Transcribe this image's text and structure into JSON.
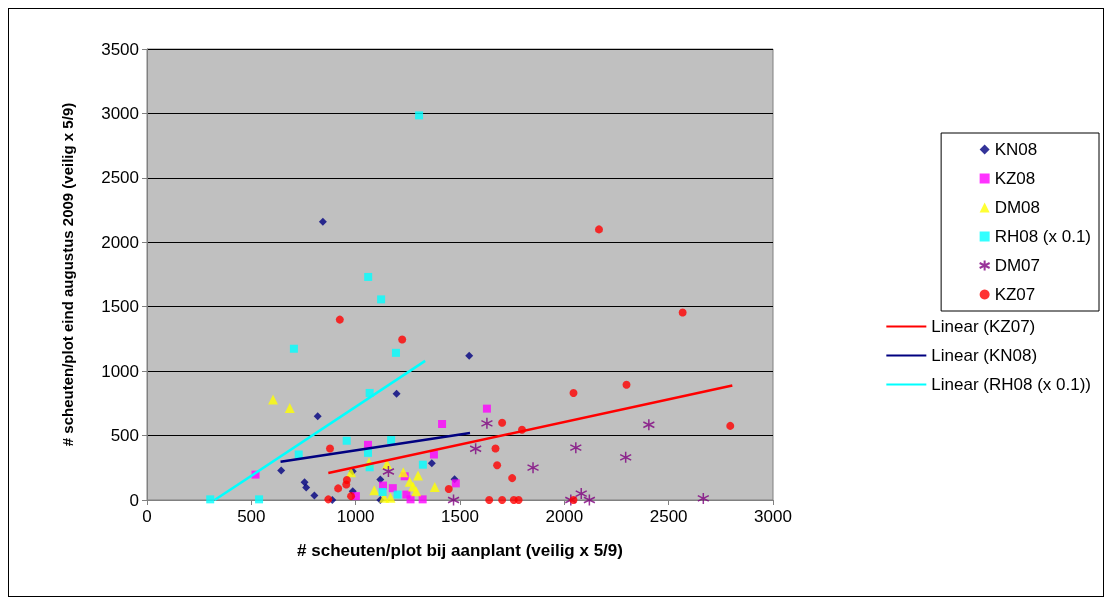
{
  "chart_data": {
    "type": "scatter",
    "xlabel": "# scheuten/plot bij aanplant (veilig x 5/9)",
    "ylabel": "# scheuten/plot eind augustus 2009 (veilig x 5/9)",
    "xlim": [
      0,
      3000
    ],
    "xticks": [
      0,
      500,
      1000,
      1500,
      2000,
      2500,
      3000
    ],
    "ylim": [
      0,
      3500
    ],
    "yticks": [
      0,
      500,
      1000,
      1500,
      2000,
      2500,
      3000,
      3500
    ],
    "grid": "y",
    "legend": "right",
    "series": [
      {
        "name": "KN08",
        "color": "#000080",
        "marker": "diamond",
        "x": [
          843,
          1544,
          1196,
          818,
          643,
          755,
          763,
          802,
          888,
          986,
          1118,
          1118,
          1365,
          1474,
          986
        ],
        "values": [
          2160,
          1120,
          824,
          649,
          229,
          137,
          97,
          35,
          0,
          224,
          159,
          0,
          286,
          162,
          67
        ]
      },
      {
        "name": "KZ08",
        "color": "#ff00ff",
        "marker": "square",
        "x": [
          520,
          1059,
          1414,
          1629,
          1375,
          1131,
          1178,
          1001,
          1243,
          1263,
          1321,
          1480,
          1235
        ],
        "values": [
          197,
          428,
          590,
          709,
          353,
          112,
          92,
          30,
          42,
          5,
          5,
          129,
          184
        ]
      },
      {
        "name": "DM08",
        "color": "#ffff00",
        "marker": "triangle",
        "x": [
          604,
          684,
          978,
          1064,
          1150,
          1228,
          1299,
          1259,
          1275,
          1290,
          1379,
          1089,
          1136,
          1167
        ],
        "values": [
          780,
          714,
          216,
          291,
          279,
          216,
          191,
          142,
          104,
          67,
          100,
          75,
          17,
          17
        ]
      },
      {
        "name": "RH08 (x 0.1)",
        "color": "#00ffff",
        "marker": "square",
        "x": [
          1304,
          1060,
          1122,
          704,
          1193,
          1067,
          957,
          1170,
          1059,
          1067,
          727,
          1322,
          303,
          537,
          1129,
          1201
        ],
        "values": [
          2985,
          1731,
          1557,
          1174,
          1142,
          831,
          460,
          465,
          366,
          254,
          353,
          274,
          5,
          5,
          62,
          42
        ]
      },
      {
        "name": "DM07",
        "color": "#800080",
        "marker": "cross",
        "x": [
          1157,
          1469,
          1575,
          1629,
          2055,
          2405,
          2294,
          1850,
          2081,
          2120,
          2031,
          2666
        ],
        "values": [
          221,
          0,
          398,
          595,
          406,
          584,
          331,
          251,
          50,
          0,
          0,
          12
        ]
      },
      {
        "name": "KZ07",
        "color": "#ff0000",
        "marker": "circle",
        "x": [
          2166,
          924,
          1223,
          877,
          958,
          955,
          916,
          869,
          978,
          1446,
          1640,
          2567,
          2298,
          2044,
          1702,
          1797,
          2795,
          1670,
          1678,
          1750,
          1702,
          1758,
          1781,
          2044
        ],
        "values": [
          2100,
          1400,
          1245,
          400,
          155,
          120,
          90,
          5,
          30,
          85,
          0,
          1455,
          895,
          830,
          600,
          545,
          575,
          400,
          270,
          170,
          0,
          0,
          0,
          0
        ]
      },
      {
        "name": "Linear (KZ07)",
        "type": "line",
        "color": "#ff0000",
        "marker": "none",
        "x": [
          869,
          2805
        ],
        "values": [
          209,
          888
        ]
      },
      {
        "name": "Linear (KN08)",
        "type": "line",
        "color": "#000080",
        "marker": "none",
        "x": [
          640,
          1548
        ],
        "values": [
          296,
          520
        ]
      },
      {
        "name": "Linear (RH08 (x 0.1))",
        "type": "line",
        "color": "#00ffff",
        "marker": "none",
        "x": [
          324,
          1333
        ],
        "values": [
          0,
          1080
        ]
      }
    ]
  }
}
